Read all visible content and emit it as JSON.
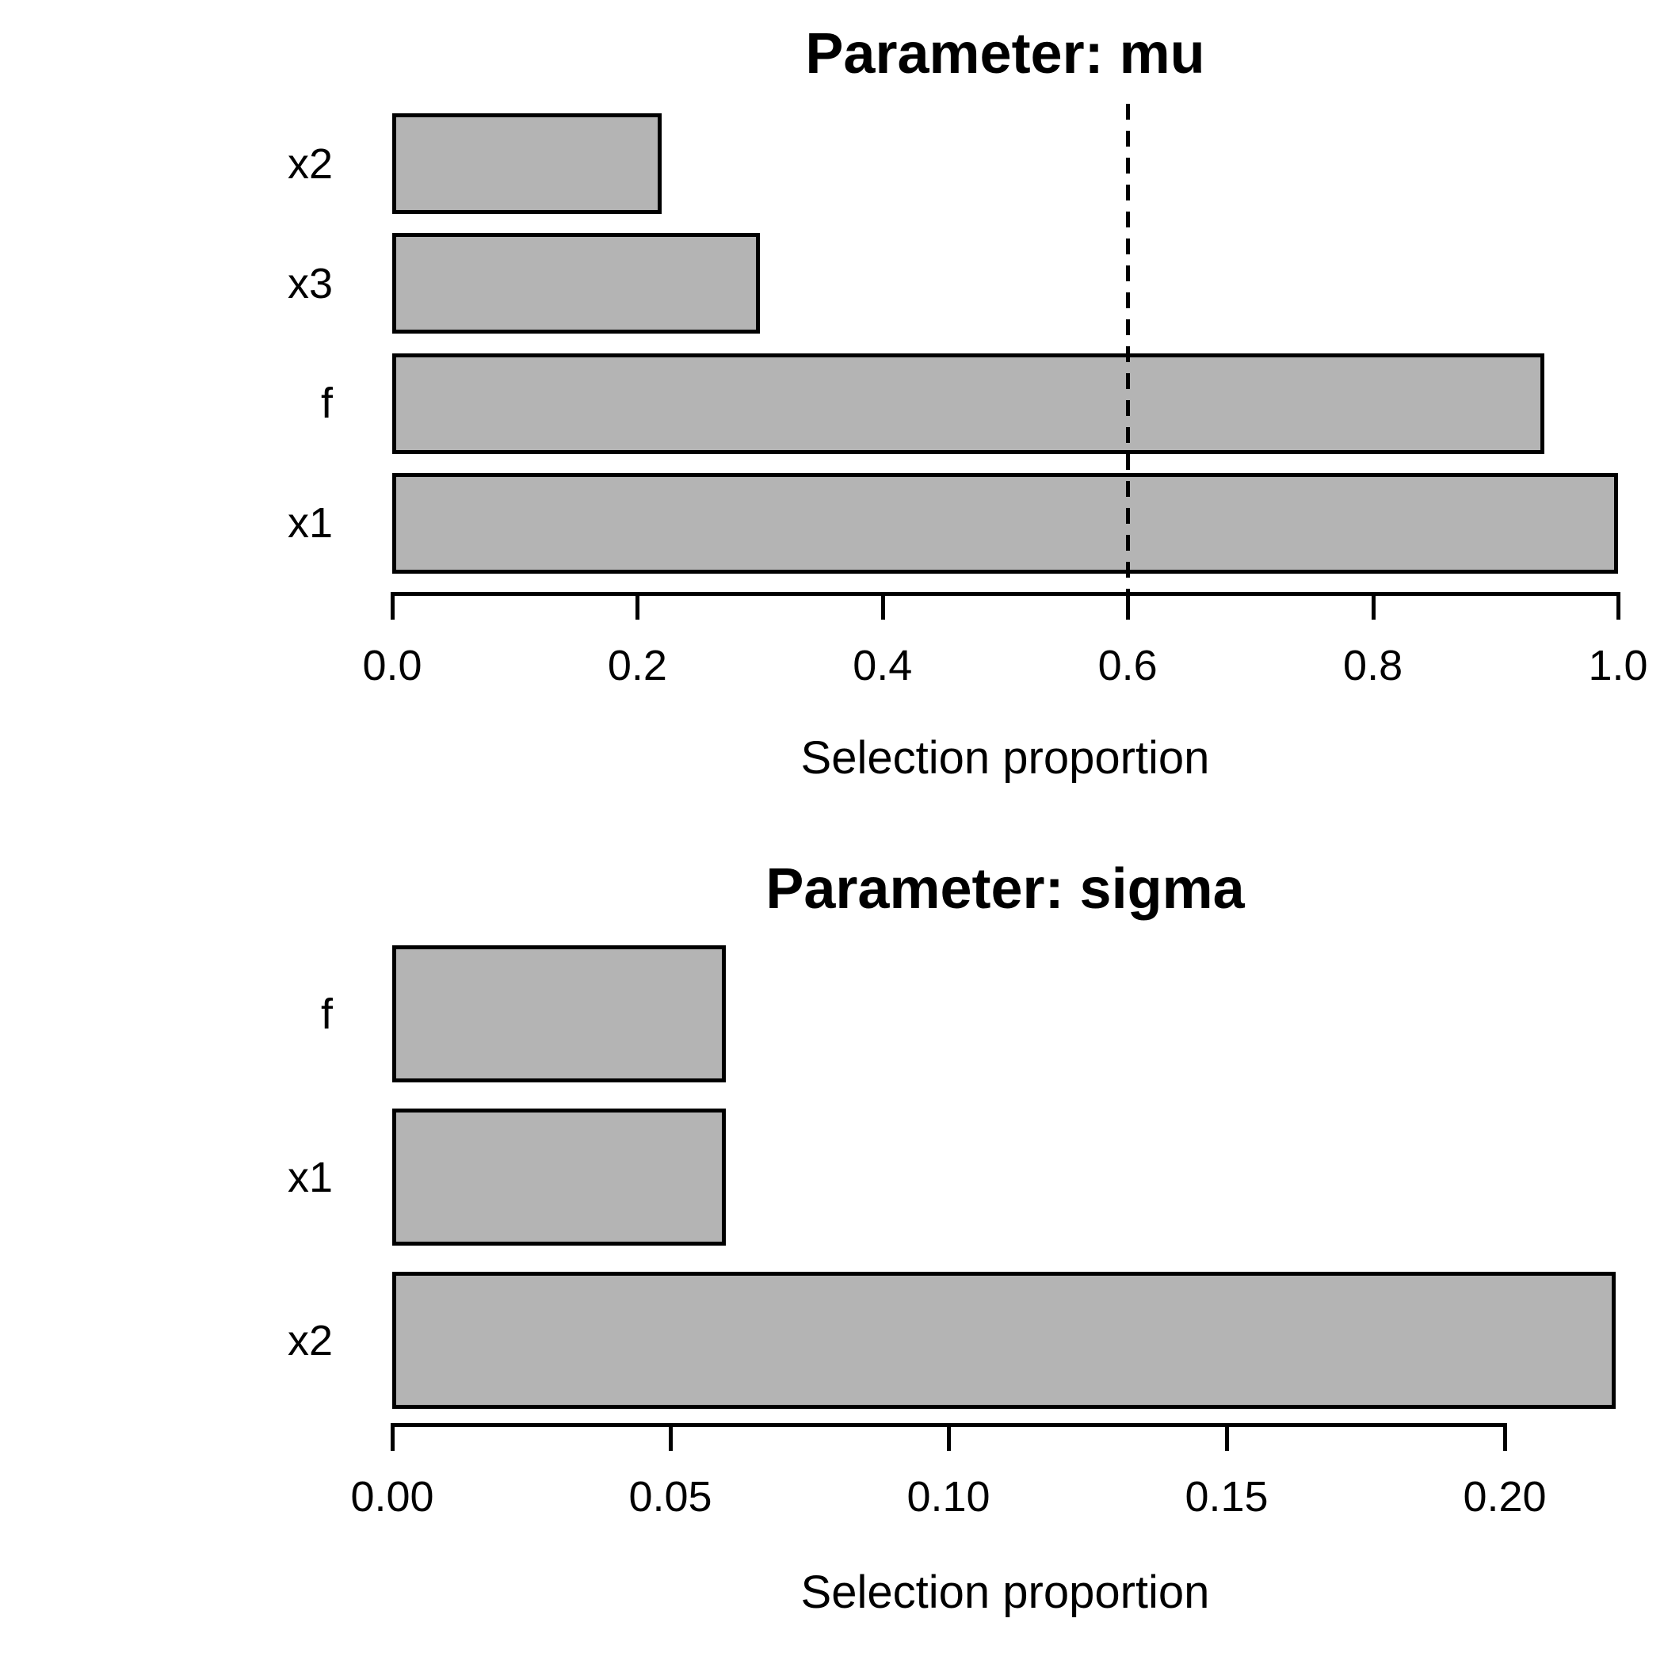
{
  "figure": {
    "background_color": "#ffffff",
    "text_color": "#000000"
  },
  "chart_data": [
    {
      "id": "mu",
      "type": "bar",
      "orientation": "horizontal",
      "title": "Parameter: mu",
      "xlabel": "Selection proportion",
      "categories": [
        "x2",
        "x3",
        "f",
        "x1"
      ],
      "values": [
        0.22,
        0.3,
        0.94,
        1.0
      ],
      "xlim": [
        0,
        1.0
      ],
      "ticks": [
        {
          "label": "0.0",
          "value": 0.0
        },
        {
          "label": "0.2",
          "value": 0.2
        },
        {
          "label": "0.4",
          "value": 0.4
        },
        {
          "label": "0.6",
          "value": 0.6
        },
        {
          "label": "0.8",
          "value": 0.8
        },
        {
          "label": "1.0",
          "value": 1.0
        }
      ],
      "threshold": {
        "value": 0.6,
        "style": "dashed",
        "color": "#000000"
      },
      "bar_color": "#b4b4b4",
      "bar_border_color": "#000000",
      "grid": "off",
      "legend": "none"
    },
    {
      "id": "sigma",
      "type": "bar",
      "orientation": "horizontal",
      "title": "Parameter: sigma",
      "xlabel": "Selection proportion",
      "categories": [
        "f",
        "x1",
        "x2"
      ],
      "values": [
        0.06,
        0.06,
        0.22
      ],
      "xlim": [
        0,
        0.22
      ],
      "ticks": [
        {
          "label": "0.00",
          "value": 0.0
        },
        {
          "label": "0.05",
          "value": 0.05
        },
        {
          "label": "0.10",
          "value": 0.1
        },
        {
          "label": "0.15",
          "value": 0.15
        },
        {
          "label": "0.20",
          "value": 0.2
        }
      ],
      "threshold": null,
      "bar_color": "#b4b4b4",
      "bar_border_color": "#000000",
      "grid": "off",
      "legend": "none"
    }
  ]
}
